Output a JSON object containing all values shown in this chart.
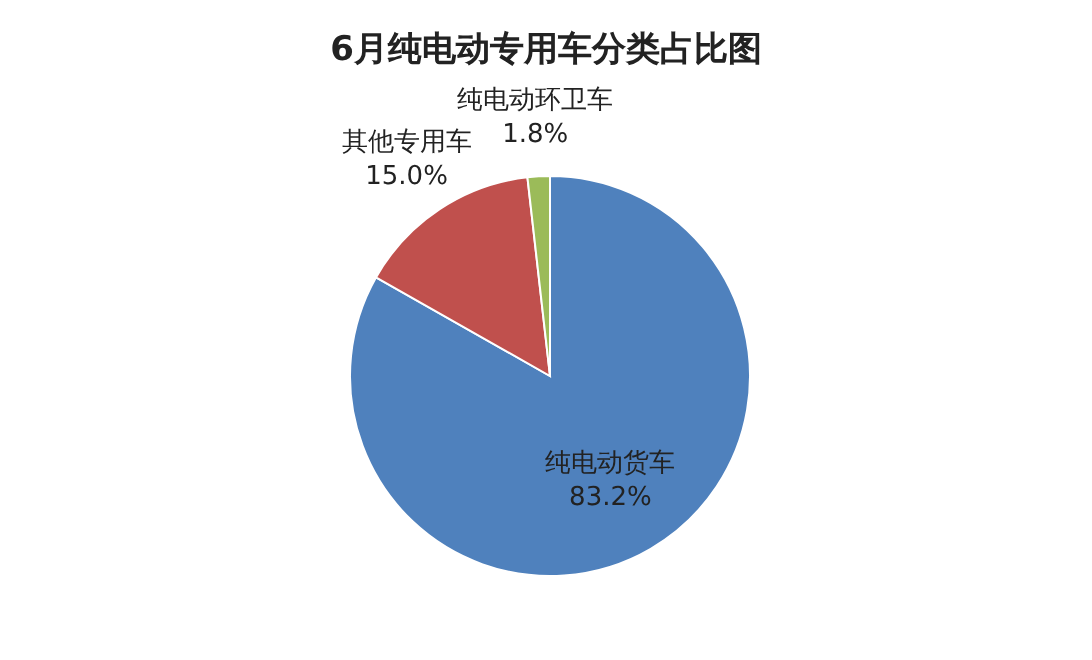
{
  "chart_data": {
    "type": "pie",
    "title": "6月纯电动专用车分类占比图",
    "categories": [
      "纯电动货车",
      "其他专用车",
      "纯电动环卫车"
    ],
    "values": [
      83.2,
      15.0,
      1.8
    ],
    "value_labels": [
      "83.2%",
      "15.0%",
      "1.8%"
    ],
    "colors": [
      "#4f81bd",
      "#c0504d",
      "#9bbb59"
    ]
  }
}
